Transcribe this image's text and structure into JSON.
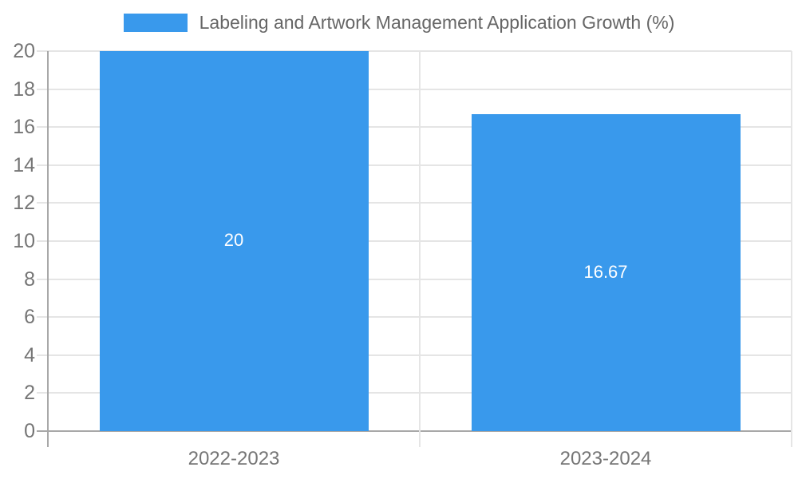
{
  "chart_data": {
    "type": "bar",
    "title": "Labeling and Artwork Management Application Growth (%)",
    "categories": [
      "2022-2023",
      "2023-2024"
    ],
    "values": [
      20,
      16.67
    ],
    "data_labels": [
      "20",
      "16.67"
    ],
    "xlabel": "",
    "ylabel": "",
    "ylim": [
      0,
      20
    ],
    "ytick_step": 2,
    "grid": true,
    "legend_position": "top-center",
    "colors": {
      "bar": "#3999ec",
      "gridline": "#e5e5e5",
      "axis_line": "#a8a8a8",
      "tick_text": "#757575",
      "legend_text": "#666666",
      "data_label_text": "#ffffff",
      "background": "#ffffff"
    }
  }
}
